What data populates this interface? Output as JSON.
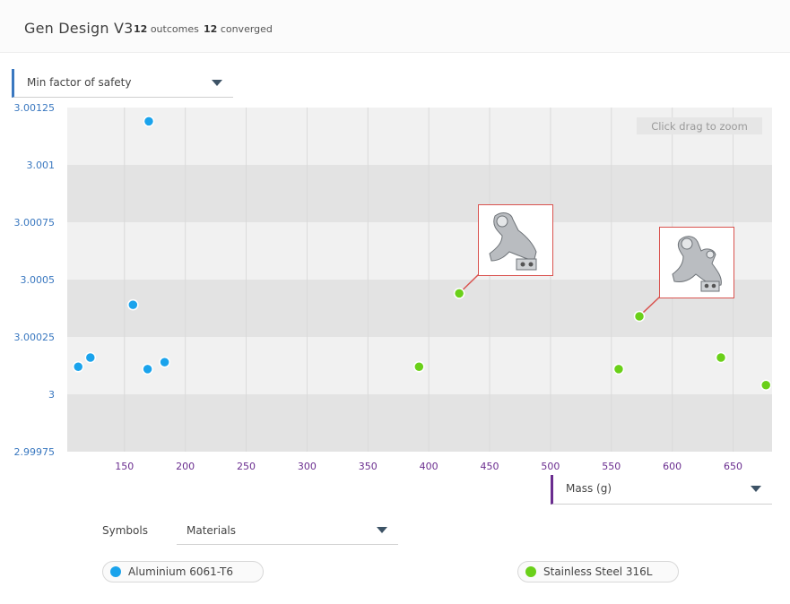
{
  "header": {
    "title": "Gen Design V3",
    "outcomes_count": "12",
    "outcomes_label": "outcomes",
    "converged_count": "12",
    "converged_label": "converged"
  },
  "y_selector": {
    "label": "Min factor of safety"
  },
  "x_selector": {
    "label": "Mass (g)"
  },
  "zoom_hint": "Click drag to zoom",
  "symbols": {
    "label": "Symbols",
    "selected": "Materials"
  },
  "legend": [
    {
      "name": "Aluminium 6061-T6",
      "color": "#1aa3ec"
    },
    {
      "name": "Stainless Steel 316L",
      "color": "#6ad019"
    }
  ],
  "colors": {
    "y_accent": "#3a78c0",
    "x_accent": "#6a2d8f",
    "callout": "#d9534f"
  },
  "chart_data": {
    "type": "scatter",
    "xlabel": "Mass (g)",
    "ylabel": "Min factor of safety",
    "xlim": [
      103,
      682
    ],
    "ylim": [
      2.99975,
      3.00125
    ],
    "x_ticks": [
      "150",
      "200",
      "250",
      "300",
      "350",
      "400",
      "450",
      "500",
      "550",
      "600",
      "650"
    ],
    "y_ticks": [
      "3.00125",
      "3.001",
      "3.00075",
      "3.0005",
      "3.00025",
      "3",
      "2.99975"
    ],
    "grid": true,
    "legend_position": "bottom",
    "series": [
      {
        "name": "Aluminium 6061-T6",
        "color": "#1aa3ec",
        "points": [
          {
            "x": 112,
            "y": 3.00012
          },
          {
            "x": 122,
            "y": 3.00016
          },
          {
            "x": 157,
            "y": 3.00039
          },
          {
            "x": 169,
            "y": 3.00011
          },
          {
            "x": 170,
            "y": 3.00119
          },
          {
            "x": 183,
            "y": 3.00014
          }
        ]
      },
      {
        "name": "Stainless Steel 316L",
        "color": "#6ad019",
        "points": [
          {
            "x": 392,
            "y": 3.00012
          },
          {
            "x": 425,
            "y": 3.00044,
            "thumbnail": true
          },
          {
            "x": 556,
            "y": 3.00011
          },
          {
            "x": 573,
            "y": 3.00034,
            "thumbnail": true
          },
          {
            "x": 640,
            "y": 3.00016
          },
          {
            "x": 677,
            "y": 3.00004
          }
        ]
      }
    ]
  }
}
